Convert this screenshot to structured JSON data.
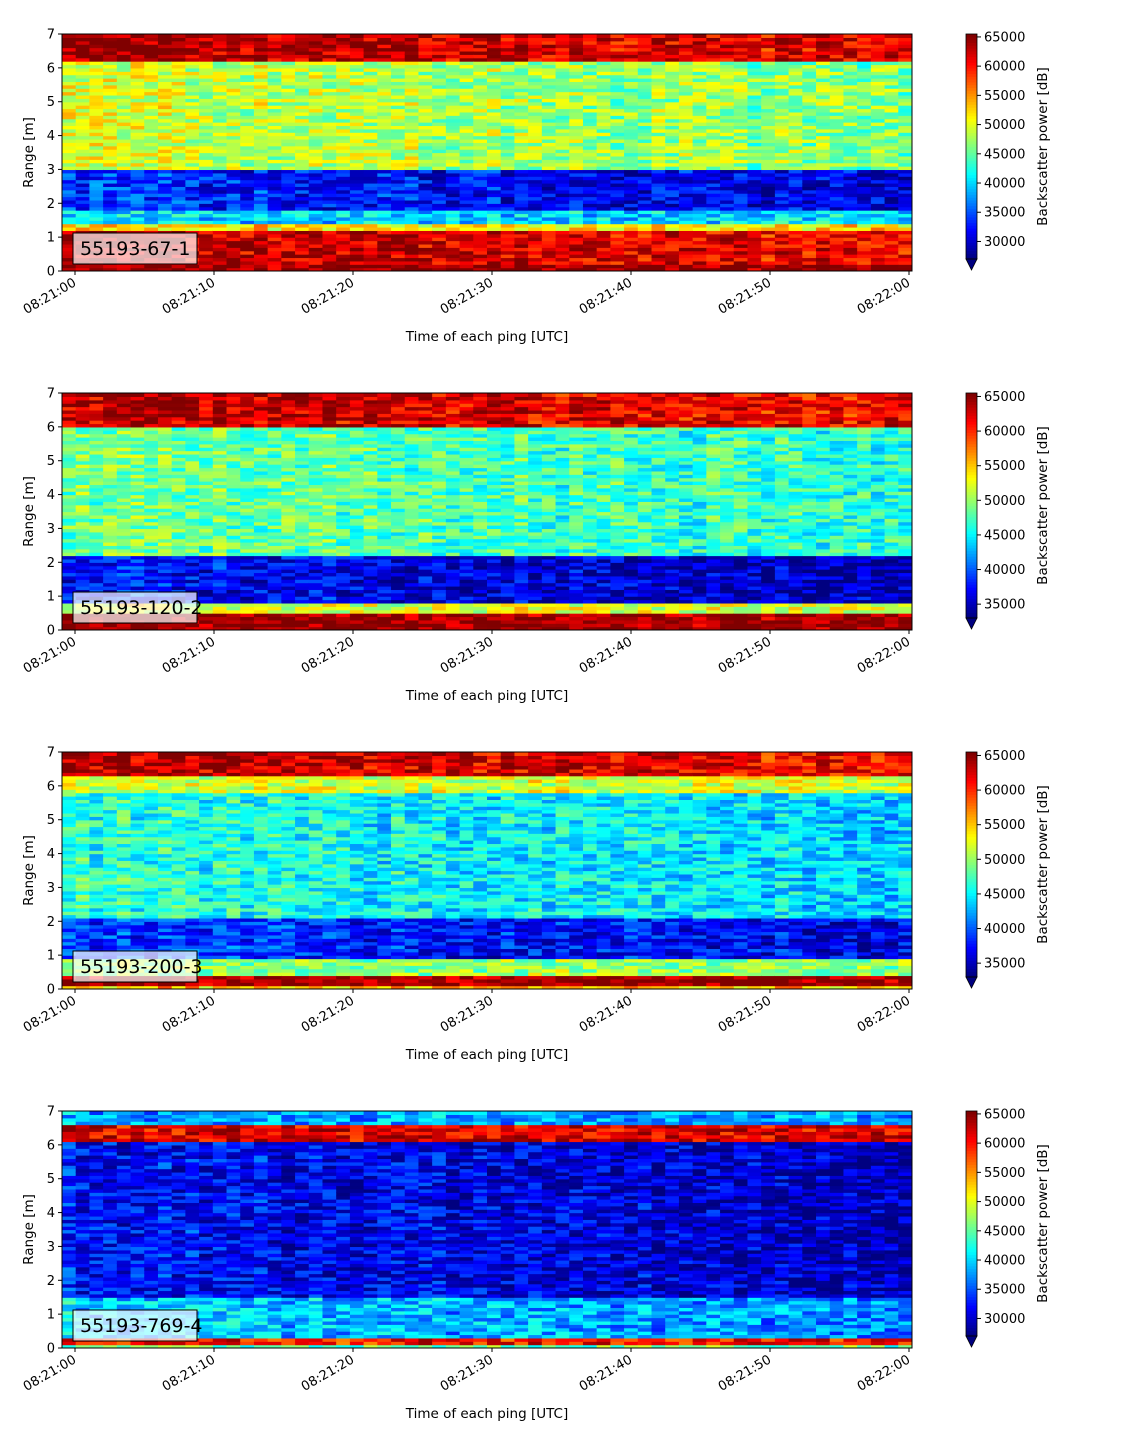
{
  "chart_data": [
    {
      "type": "heatmap",
      "label": "55193-67-1",
      "xlabel": "Time of each ping [UTC]",
      "ylabel": "Range [m]",
      "ylim": [
        0,
        7
      ],
      "yticks": [
        0,
        1,
        2,
        3,
        4,
        5,
        6,
        7
      ],
      "xticks": [
        "08:21:00",
        "08:21:10",
        "08:21:20",
        "08:21:30",
        "08:21:40",
        "08:21:50",
        "08:22:00"
      ],
      "colorbar_label": "Backscatter power [dB]",
      "clim": [
        27000,
        65500
      ],
      "colorbar_ticks": [
        30000,
        35000,
        40000,
        45000,
        50000,
        55000,
        60000,
        65000
      ],
      "colormap": "jet",
      "bands": [
        {
          "range": [
            0,
            0.25
          ],
          "value": 65000
        },
        {
          "range": [
            0.25,
            1.25
          ],
          "value": 64000
        },
        {
          "range": [
            1.25,
            1.45
          ],
          "value": 52000
        },
        {
          "range": [
            1.45,
            1.8
          ],
          "value": 40000
        },
        {
          "range": [
            1.8,
            3.0
          ],
          "value": 33500
        },
        {
          "range": [
            3.0,
            6.2
          ],
          "value": 49500
        },
        {
          "range": [
            6.2,
            7.0
          ],
          "value": 64500
        }
      ]
    },
    {
      "type": "heatmap",
      "label": "55193-120-2",
      "xlabel": "Time of each ping [UTC]",
      "ylabel": "Range [m]",
      "ylim": [
        0,
        7
      ],
      "yticks": [
        0,
        1,
        2,
        3,
        4,
        5,
        6,
        7
      ],
      "xticks": [
        "08:21:00",
        "08:21:10",
        "08:21:20",
        "08:21:30",
        "08:21:40",
        "08:21:50",
        "08:22:00"
      ],
      "colorbar_label": "Backscatter power [dB]",
      "clim": [
        33000,
        65500
      ],
      "colorbar_ticks": [
        35000,
        40000,
        45000,
        50000,
        55000,
        60000,
        65000
      ],
      "colormap": "jet",
      "bands": [
        {
          "range": [
            0,
            0.5
          ],
          "value": 65000
        },
        {
          "range": [
            0.5,
            0.8
          ],
          "value": 52000
        },
        {
          "range": [
            0.8,
            2.2
          ],
          "value": 37500
        },
        {
          "range": [
            2.2,
            6.0
          ],
          "value": 49000
        },
        {
          "range": [
            6.0,
            7.0
          ],
          "value": 64000
        }
      ]
    },
    {
      "type": "heatmap",
      "label": "55193-200-3",
      "xlabel": "Time of each ping [UTC]",
      "ylabel": "Range [m]",
      "ylim": [
        0,
        7
      ],
      "yticks": [
        0,
        1,
        2,
        3,
        4,
        5,
        6,
        7
      ],
      "xticks": [
        "08:21:00",
        "08:21:10",
        "08:21:20",
        "08:21:30",
        "08:21:40",
        "08:21:50",
        "08:22:00"
      ],
      "colorbar_label": "Backscatter power [dB]",
      "clim": [
        33000,
        65500
      ],
      "colorbar_ticks": [
        35000,
        40000,
        45000,
        50000,
        55000,
        60000,
        65000
      ],
      "colormap": "jet",
      "bands": [
        {
          "range": [
            0,
            0.15
          ],
          "value": 55000
        },
        {
          "range": [
            0.15,
            0.4
          ],
          "value": 65000
        },
        {
          "range": [
            0.4,
            0.9
          ],
          "value": 50000
        },
        {
          "range": [
            0.9,
            2.1
          ],
          "value": 39000
        },
        {
          "range": [
            2.1,
            5.8
          ],
          "value": 46500
        },
        {
          "range": [
            5.8,
            6.3
          ],
          "value": 52000
        },
        {
          "range": [
            6.3,
            7.0
          ],
          "value": 64000
        }
      ]
    },
    {
      "type": "heatmap",
      "label": "55193-769-4",
      "xlabel": "Time of each ping [UTC]",
      "ylabel": "Range [m]",
      "ylim": [
        0,
        7
      ],
      "yticks": [
        0,
        1,
        2,
        3,
        4,
        5,
        6,
        7
      ],
      "xticks": [
        "08:21:00",
        "08:21:10",
        "08:21:20",
        "08:21:30",
        "08:21:40",
        "08:21:50",
        "08:22:00"
      ],
      "colorbar_label": "Backscatter power [dB]",
      "clim": [
        27000,
        65500
      ],
      "colorbar_ticks": [
        30000,
        35000,
        40000,
        45000,
        50000,
        55000,
        60000,
        65000
      ],
      "colormap": "jet",
      "bands": [
        {
          "range": [
            0,
            0.15
          ],
          "value": 45000
        },
        {
          "range": [
            0.15,
            0.35
          ],
          "value": 60000
        },
        {
          "range": [
            0.35,
            1.5
          ],
          "value": 40000
        },
        {
          "range": [
            1.5,
            6.1
          ],
          "value": 32500
        },
        {
          "range": [
            6.1,
            6.6
          ],
          "value": 62000
        },
        {
          "range": [
            6.6,
            7.0
          ],
          "value": 38000
        }
      ]
    }
  ]
}
